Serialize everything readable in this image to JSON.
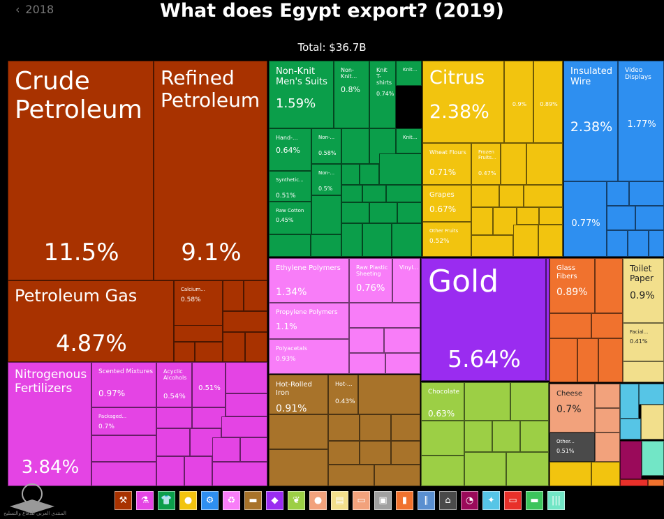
{
  "nav": {
    "prev_year_label": "2018",
    "prev_chevron": "‹"
  },
  "chart_data": {
    "type": "treemap",
    "title": "What does Egypt export? (2019)",
    "subtitle": "Total: $36.7B",
    "items": [
      {
        "name": "Crude Petroleum",
        "pct": "11.5%",
        "sector": "Minerals"
      },
      {
        "name": "Refined Petroleum",
        "pct": "9.1%",
        "sector": "Minerals"
      },
      {
        "name": "Petroleum Gas",
        "pct": "4.87%",
        "sector": "Minerals"
      },
      {
        "name": "Calcium...",
        "pct": "0.58%",
        "sector": "Minerals"
      },
      {
        "name": "Nitrogenous Fertilizers",
        "pct": "3.84%",
        "sector": "Chemicals"
      },
      {
        "name": "Scented Mixtures",
        "pct": "0.97%",
        "sector": "Chemicals"
      },
      {
        "name": "Acyclic Alcohols",
        "pct": "0.54%",
        "sector": "Chemicals"
      },
      {
        "name": "",
        "pct": "0.51%",
        "sector": "Chemicals"
      },
      {
        "name": "Packaged...",
        "pct": "0.7%",
        "sector": "Chemicals"
      },
      {
        "name": "Non-Knit Men's Suits",
        "pct": "1.59%",
        "sector": "Textiles"
      },
      {
        "name": "Non-Knit...",
        "pct": "0.8%",
        "sector": "Textiles"
      },
      {
        "name": "Knit T-shirts",
        "pct": "0.74%",
        "sector": "Textiles"
      },
      {
        "name": "Knit...",
        "pct": "",
        "sector": "Textiles"
      },
      {
        "name": "Hand-...",
        "pct": "0.64%",
        "sector": "Textiles"
      },
      {
        "name": "Non-...",
        "pct": "0.58%",
        "sector": "Textiles"
      },
      {
        "name": "Knit...",
        "pct": "",
        "sector": "Textiles"
      },
      {
        "name": "Synthetic...",
        "pct": "0.51%",
        "sector": "Textiles"
      },
      {
        "name": "Non-...",
        "pct": "0.5%",
        "sector": "Textiles"
      },
      {
        "name": "Raw Cotton",
        "pct": "0.45%",
        "sector": "Textiles"
      },
      {
        "name": "Citrus",
        "pct": "2.38%",
        "sector": "Vegetable Products"
      },
      {
        "name": "",
        "pct": "0.9%",
        "sector": "Vegetable Products"
      },
      {
        "name": "",
        "pct": "0.89%",
        "sector": "Vegetable Products"
      },
      {
        "name": "Wheat Flours",
        "pct": "0.71%",
        "sector": "Vegetable Products"
      },
      {
        "name": "Frozen Fruits...",
        "pct": "0.47%",
        "sector": "Vegetable Products"
      },
      {
        "name": "Grapes",
        "pct": "0.67%",
        "sector": "Vegetable Products"
      },
      {
        "name": "Other Fruits",
        "pct": "0.52%",
        "sector": "Vegetable Products"
      },
      {
        "name": "Insulated Wire",
        "pct": "2.38%",
        "sector": "Machines"
      },
      {
        "name": "Video Displays",
        "pct": "1.77%",
        "sector": "Machines"
      },
      {
        "name": "",
        "pct": "0.77%",
        "sector": "Machines"
      },
      {
        "name": "Ethylene Polymers",
        "pct": "1.34%",
        "sector": "Plastics and Rubbers"
      },
      {
        "name": "Raw Plastic Sheeting",
        "pct": "0.76%",
        "sector": "Plastics and Rubbers"
      },
      {
        "name": "Vinyl...",
        "pct": "",
        "sector": "Plastics and Rubbers"
      },
      {
        "name": "Propylene Polymers",
        "pct": "1.1%",
        "sector": "Plastics and Rubbers"
      },
      {
        "name": "Polyacetals",
        "pct": "0.93%",
        "sector": "Plastics and Rubbers"
      },
      {
        "name": "Gold",
        "pct": "5.64%",
        "sector": "Precious Metals"
      },
      {
        "name": "Hot-Rolled Iron",
        "pct": "0.91%",
        "sector": "Metals"
      },
      {
        "name": "Hot-...",
        "pct": "0.43%",
        "sector": "Metals"
      },
      {
        "name": "Chocolate",
        "pct": "0.63%",
        "sector": "Foodstuffs"
      },
      {
        "name": "Glass Fibers",
        "pct": "0.89%",
        "sector": "Stone and Glass"
      },
      {
        "name": "Toilet Paper",
        "pct": "0.9%",
        "sector": "Paper Goods"
      },
      {
        "name": "Facial...",
        "pct": "0.41%",
        "sector": "Paper Goods"
      },
      {
        "name": "Cheese",
        "pct": "0.7%",
        "sector": "Animal Products"
      },
      {
        "name": "Other...",
        "pct": "0.51%",
        "sector": "Animal Products"
      }
    ]
  },
  "colors": {
    "minerals": "#a83200",
    "chemicals": "#e444e4",
    "textiles": "#0b9e4a",
    "vegetable": "#f2c40f",
    "machines": "#2e8ff0",
    "plastics": "#f87df8",
    "gold": "#9a2cf0",
    "metals": "#a8732a",
    "foodstuffs": "#9ccf45",
    "stone": "#f0722e",
    "paper": "#f2df8c",
    "animal": "#f2a27c",
    "other": "#4a4a4a",
    "cyan": "#56c5e6",
    "wine": "#9a0a5a",
    "red": "#e8302a",
    "teal": "#72e6c6"
  },
  "legend": [
    {
      "icon": "pick-axe-icon",
      "glyph": "⚒",
      "color": "#a83200"
    },
    {
      "icon": "flask-icon",
      "glyph": "⚗",
      "color": "#e444e4"
    },
    {
      "icon": "shirt-icon",
      "glyph": "👕",
      "color": "#0b9e4a"
    },
    {
      "icon": "fruit-icon",
      "glyph": "●",
      "color": "#f2c40f"
    },
    {
      "icon": "gear-icon",
      "glyph": "⚙",
      "color": "#2e8ff0"
    },
    {
      "icon": "recycle-icon",
      "glyph": "♻",
      "color": "#f87df8"
    },
    {
      "icon": "anvil-icon",
      "glyph": "▬",
      "color": "#a8732a"
    },
    {
      "icon": "gem-icon",
      "glyph": "◆",
      "color": "#9a2cf0"
    },
    {
      "icon": "wheat-icon",
      "glyph": "❦",
      "color": "#9ccf45"
    },
    {
      "icon": "meat-icon",
      "glyph": "●",
      "color": "#f2a27c"
    },
    {
      "icon": "scroll-icon",
      "glyph": "▤",
      "color": "#f2df8c"
    },
    {
      "icon": "shoe-icon",
      "glyph": "▭",
      "color": "#f2a27c"
    },
    {
      "icon": "cube-icon",
      "glyph": "▣",
      "color": "#a0a0a0"
    },
    {
      "icon": "oil-can-icon",
      "glyph": "▮",
      "color": "#f0722e"
    },
    {
      "icon": "road-icon",
      "glyph": "∥",
      "color": "#5a8fd0"
    },
    {
      "icon": "easel-icon",
      "glyph": "⌂",
      "color": "#4a4a4a"
    },
    {
      "icon": "gauge-icon",
      "glyph": "◔",
      "color": "#9a0a5a"
    },
    {
      "icon": "hide-icon",
      "glyph": "✦",
      "color": "#56c5e6"
    },
    {
      "icon": "ticket-icon",
      "glyph": "▭",
      "color": "#e8302a"
    },
    {
      "icon": "truck-icon",
      "glyph": "▬",
      "color": "#3cc45c"
    },
    {
      "icon": "weave-icon",
      "glyph": "|||",
      "color": "#72e6c6"
    }
  ],
  "watermark": {
    "text": "المنتدى العربي للدفاع والتسليح"
  }
}
